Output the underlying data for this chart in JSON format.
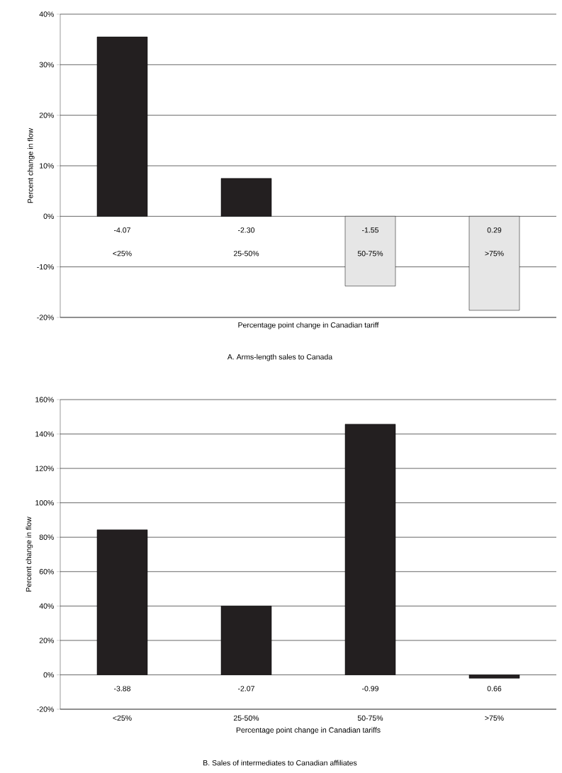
{
  "chart_data": [
    {
      "type": "bar",
      "title": "A. Arms-length sales to Canada",
      "xlabel": "Percentage point change in Canadian tariff",
      "ylabel": "Percent change in flow",
      "categories": [
        "<25%",
        "25-50%",
        "50-75%",
        ">75%"
      ],
      "values": [
        35.5,
        7.5,
        -13.8,
        -18.6
      ],
      "colors": [
        "#231f20",
        "#231f20",
        "#e6e6e6",
        "#e6e6e6"
      ],
      "ylim": [
        -20,
        40
      ],
      "yticks": [
        {
          "value": -20,
          "label": "-20%"
        },
        {
          "value": -10,
          "label": "-10%"
        },
        {
          "value": 0,
          "label": "0%"
        },
        {
          "value": 10,
          "label": "10%"
        },
        {
          "value": 20,
          "label": "20%"
        },
        {
          "value": 30,
          "label": "30%"
        },
        {
          "value": 40,
          "label": "40%"
        }
      ],
      "grid": "y",
      "annotations": [
        "-4.07",
        "-2.30",
        "-1.55",
        "0.29"
      ]
    },
    {
      "type": "bar",
      "title": "B. Sales of intermediates to Canadian affiliates",
      "xlabel": "Percentage point change in Canadian tariffs",
      "ylabel": "Percent change in flow",
      "categories": [
        "<25%",
        "25-50%",
        "50-75%",
        ">75%"
      ],
      "values": [
        84.3,
        40,
        145.7,
        -2
      ],
      "color": "#231f20",
      "ylim": [
        -20,
        160
      ],
      "yticks": [
        {
          "value": -20,
          "label": "-20%"
        },
        {
          "value": 0,
          "label": "0%"
        },
        {
          "value": 20,
          "label": "20%"
        },
        {
          "value": 40,
          "label": "40%"
        },
        {
          "value": 60,
          "label": "60%"
        },
        {
          "value": 80,
          "label": "80%"
        },
        {
          "value": 100,
          "label": "100%"
        },
        {
          "value": 120,
          "label": "120%"
        },
        {
          "value": 140,
          "label": "140%"
        },
        {
          "value": 160,
          "label": "160%"
        }
      ],
      "grid": "y",
      "annotations": [
        "-3.88",
        "-2.07",
        "-0.99",
        "0.66"
      ]
    }
  ]
}
